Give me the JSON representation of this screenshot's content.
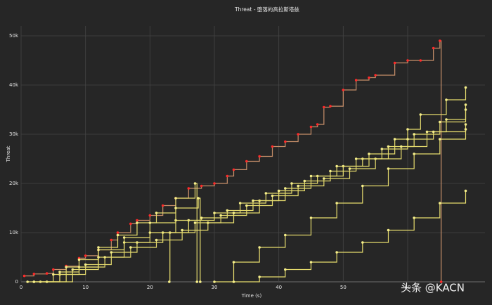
{
  "chart_data": {
    "type": "line",
    "line_shape": "hv",
    "title": "Threat - 堕落的高拉斯塔兹",
    "x_label": "Time (s)",
    "y_label": "Threat",
    "annotation": "头条 @KACN",
    "xlim": [
      0,
      72
    ],
    "ylim": [
      0,
      52000
    ],
    "xticks": [
      0,
      10,
      20,
      30,
      40,
      50,
      60
    ],
    "yticks": [
      0,
      {
        "value": 10000,
        "label": "10k"
      },
      {
        "value": 20000,
        "label": "20k"
      },
      {
        "value": 30000,
        "label": "30k"
      },
      {
        "value": 40000,
        "label": "40k"
      },
      {
        "value": 50000,
        "label": "50k"
      }
    ],
    "grid": true,
    "series": [
      {
        "color": "#c8906a",
        "marker_color": "#ff2a2a",
        "x": [
          0.5,
          2,
          4,
          5,
          7,
          9,
          10,
          12,
          14,
          15,
          17,
          18,
          20,
          22,
          24,
          26,
          28,
          30,
          32,
          33,
          35,
          37,
          39,
          41,
          43,
          45,
          46,
          47,
          48,
          50,
          52,
          54,
          55,
          58,
          60,
          62,
          64,
          65,
          65.2
        ],
        "values": [
          1200,
          1600,
          1700,
          2500,
          3200,
          4800,
          5300,
          6500,
          8500,
          10000,
          11800,
          12500,
          13500,
          15500,
          17000,
          19000,
          19500,
          20000,
          21500,
          22800,
          24500,
          25500,
          27500,
          28500,
          30000,
          31500,
          32000,
          35500,
          35700,
          39000,
          41000,
          41500,
          42000,
          44500,
          45000,
          45000,
          47500,
          49000,
          0
        ]
      },
      {
        "color": "#e6dc6e",
        "marker_color": "#f5ee8a",
        "x": [
          2,
          6,
          10,
          14,
          18,
          22,
          26,
          30,
          34,
          38,
          42,
          46,
          50,
          54,
          58,
          60,
          62,
          66,
          69
        ],
        "values": [
          0,
          1500,
          3500,
          6000,
          8000,
          10000,
          12500,
          14000,
          16000,
          18000,
          20000,
          21500,
          23500,
          26000,
          29000,
          31000,
          34000,
          37000,
          39500
        ]
      },
      {
        "color": "#e6dc6e",
        "marker_color": "#f5ee8a",
        "x": [
          3,
          6,
          9,
          12,
          15,
          18,
          21,
          24,
          27,
          27.3
        ],
        "values": [
          0,
          2000,
          4500,
          7000,
          9500,
          12000,
          14000,
          17000,
          20000,
          0
        ]
      },
      {
        "color": "#e6dc6e",
        "marker_color": "#f5ee8a",
        "x": [
          1,
          5,
          9,
          13,
          17,
          21,
          25,
          29,
          33,
          37,
          41,
          45,
          49,
          53,
          57,
          61,
          65,
          69
        ],
        "values": [
          0,
          1500,
          3000,
          5000,
          7000,
          8500,
          10500,
          12000,
          14000,
          16500,
          19000,
          21500,
          23500,
          25000,
          27500,
          30000,
          32500,
          36000
        ]
      },
      {
        "color": "#e6dc6e",
        "marker_color": "#f5ee8a",
        "x": [
          23,
          23.1,
          27,
          31,
          35,
          39,
          43,
          47,
          51,
          55,
          59,
          63,
          66,
          69
        ],
        "values": [
          0,
          10000,
          12000,
          13500,
          15500,
          17500,
          19500,
          21000,
          23000,
          25000,
          27500,
          30500,
          33000,
          35000
        ]
      },
      {
        "color": "#e6dc6e",
        "marker_color": "#f5ee8a",
        "x": [
          30,
          33,
          37,
          41,
          45,
          49,
          53,
          57,
          61,
          65,
          69
        ],
        "values": [
          0,
          4000,
          7000,
          9500,
          13000,
          16000,
          19500,
          23000,
          26000,
          29000,
          32000
        ]
      },
      {
        "color": "#e6dc6e",
        "marker_color": "#f5ee8a",
        "x": [
          33,
          37,
          41,
          45,
          49,
          53,
          57,
          61,
          65,
          69
        ],
        "values": [
          0,
          1000,
          2500,
          4000,
          6000,
          8000,
          10500,
          13000,
          16000,
          18500
        ]
      },
      {
        "color": "#e6dc6e",
        "marker_color": "#f5ee8a",
        "x": [
          4,
          8,
          12,
          16,
          20,
          24,
          28,
          32,
          36,
          40,
          44,
          48,
          52,
          56,
          60,
          64,
          69
        ],
        "values": [
          0,
          2500,
          5000,
          8000,
          10000,
          12500,
          13000,
          14500,
          16500,
          18500,
          20500,
          22500,
          25000,
          27000,
          29000,
          30500,
          31000
        ]
      },
      {
        "color": "#e6dc6e",
        "marker_color": "#f5ee8a",
        "x": [
          2,
          7,
          12,
          16,
          20,
          24,
          27.5,
          27.8
        ],
        "values": [
          0,
          3000,
          6500,
          9000,
          12000,
          15000,
          17000,
          0
        ]
      }
    ]
  }
}
